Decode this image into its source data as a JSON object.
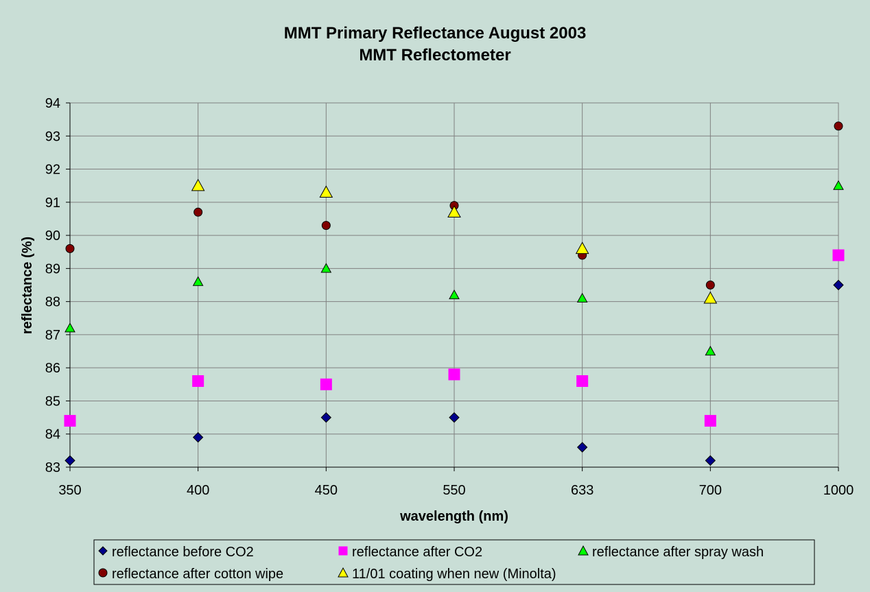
{
  "chart_data": {
    "type": "scatter",
    "title": "MMT Primary Reflectance August 2003",
    "subtitle": "MMT Reflectometer",
    "xlabel": "wavelength (nm)",
    "ylabel": "reflectance (%)",
    "categories": [
      "350",
      "400",
      "450",
      "550",
      "633",
      "700",
      "1000"
    ],
    "ylim": [
      83,
      94
    ],
    "yticks": [
      83,
      84,
      85,
      86,
      87,
      88,
      89,
      90,
      91,
      92,
      93,
      94
    ],
    "grid": true,
    "legend_position": "bottom",
    "series": [
      {
        "name": "reflectance before CO2",
        "marker": "diamond",
        "color": "#00008b",
        "values": [
          83.2,
          83.9,
          84.5,
          84.5,
          83.6,
          83.2,
          88.5
        ]
      },
      {
        "name": "reflectance after CO2",
        "marker": "square",
        "color": "#ff00ff",
        "values": [
          84.4,
          85.6,
          85.5,
          85.8,
          85.6,
          84.4,
          89.4
        ]
      },
      {
        "name": "reflectance after spray wash",
        "marker": "triangle-small",
        "color": "#00ff00",
        "values": [
          87.2,
          88.6,
          89.0,
          88.2,
          88.1,
          86.5,
          91.5
        ]
      },
      {
        "name": "reflectance after cotton wipe",
        "marker": "circle",
        "color": "#800000",
        "values": [
          89.6,
          90.7,
          90.3,
          90.9,
          89.4,
          88.5,
          93.3
        ]
      },
      {
        "name": "11/01 coating when new (Minolta)",
        "marker": "triangle",
        "color": "#ffff00",
        "values": [
          null,
          91.5,
          91.3,
          90.7,
          89.6,
          88.1,
          null
        ]
      }
    ]
  }
}
